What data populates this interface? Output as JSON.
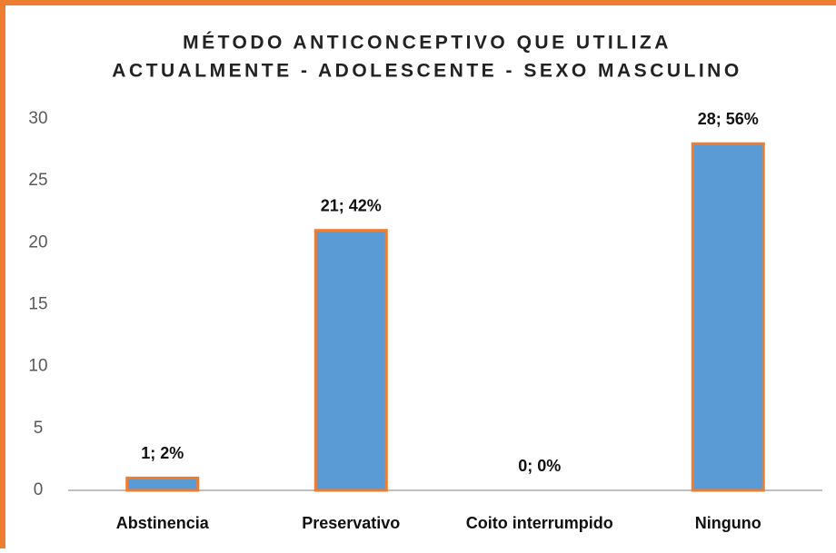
{
  "chart_data": {
    "type": "bar",
    "title": [
      "MÉTODO ANTICONCEPTIVO QUE UTILIZA",
      "ACTUALMENTE - ADOLESCENTE - SEXO MASCULINO"
    ],
    "categories": [
      "Abstinencia",
      "Preservativo",
      "Coito interrumpido",
      "Ninguno"
    ],
    "values": [
      1,
      21,
      0,
      28
    ],
    "value_labels": [
      "1; 2%",
      "21; 42%",
      "0; 0%",
      "28; 56%"
    ],
    "color": "#5b9bd5",
    "edge_color": "#ed7d31",
    "ylim": [
      0,
      30
    ],
    "yticks": [
      0,
      5,
      10,
      15,
      20,
      25,
      30
    ],
    "grid": false
  }
}
